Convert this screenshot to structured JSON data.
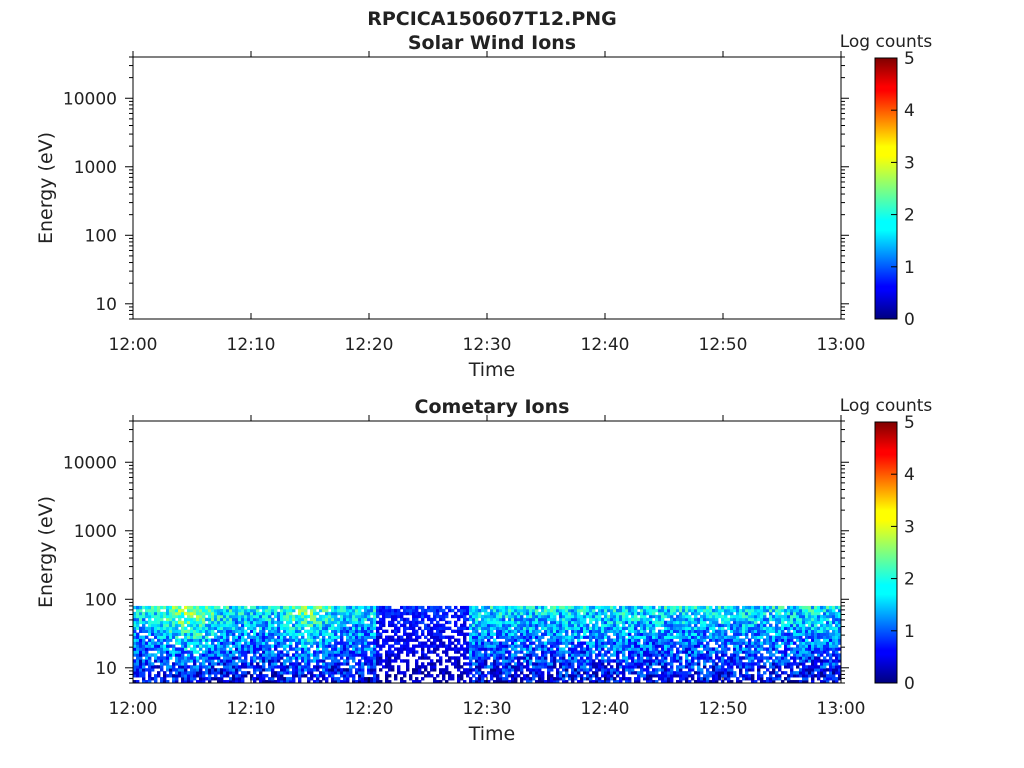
{
  "figure_title": "RPCICA150607T12.PNG",
  "colors": {
    "axis": "#000000",
    "text": "#222222",
    "background": "#ffffff"
  },
  "chart_data": [
    {
      "type": "heatmap",
      "title": "Solar Wind Ions",
      "xlabel": "Time",
      "ylabel": "Energy (eV)",
      "x_range": [
        "12:00",
        "13:00"
      ],
      "x_ticks": [
        "12:00",
        "12:10",
        "12:20",
        "12:30",
        "12:40",
        "12:50",
        "13:00"
      ],
      "y_scale": "log",
      "y_range": [
        6,
        40000
      ],
      "y_ticks": [
        "10",
        "100",
        "1000",
        "10000"
      ],
      "colorbar": {
        "label": "Log counts",
        "colormap": "jet",
        "range": [
          0,
          5
        ],
        "ticks": [
          "0",
          "1",
          "2",
          "3",
          "4",
          "5"
        ]
      },
      "data": "no counts recorded (empty panel)"
    },
    {
      "type": "heatmap",
      "title": "Cometary Ions",
      "xlabel": "Time",
      "ylabel": "Energy (eV)",
      "x_range": [
        "12:00",
        "13:00"
      ],
      "x_ticks": [
        "12:00",
        "12:10",
        "12:20",
        "12:30",
        "12:40",
        "12:50",
        "13:00"
      ],
      "y_scale": "log",
      "y_range": [
        6,
        40000
      ],
      "y_ticks": [
        "10",
        "100",
        "1000",
        "10000"
      ],
      "colorbar": {
        "label": "Log counts",
        "colormap": "jet",
        "range": [
          0,
          5
        ],
        "ticks": [
          "0",
          "1",
          "2",
          "3",
          "4",
          "5"
        ]
      },
      "data": "counts present between ~6 eV and ~80 eV throughout 12:00-13:00, mostly 0.5-2 log counts with peaks near 3 (around 12:03-12:06 and 12:14)",
      "energy_extent_eV": [
        6,
        80
      ],
      "peak_log_counts": 3
    }
  ]
}
